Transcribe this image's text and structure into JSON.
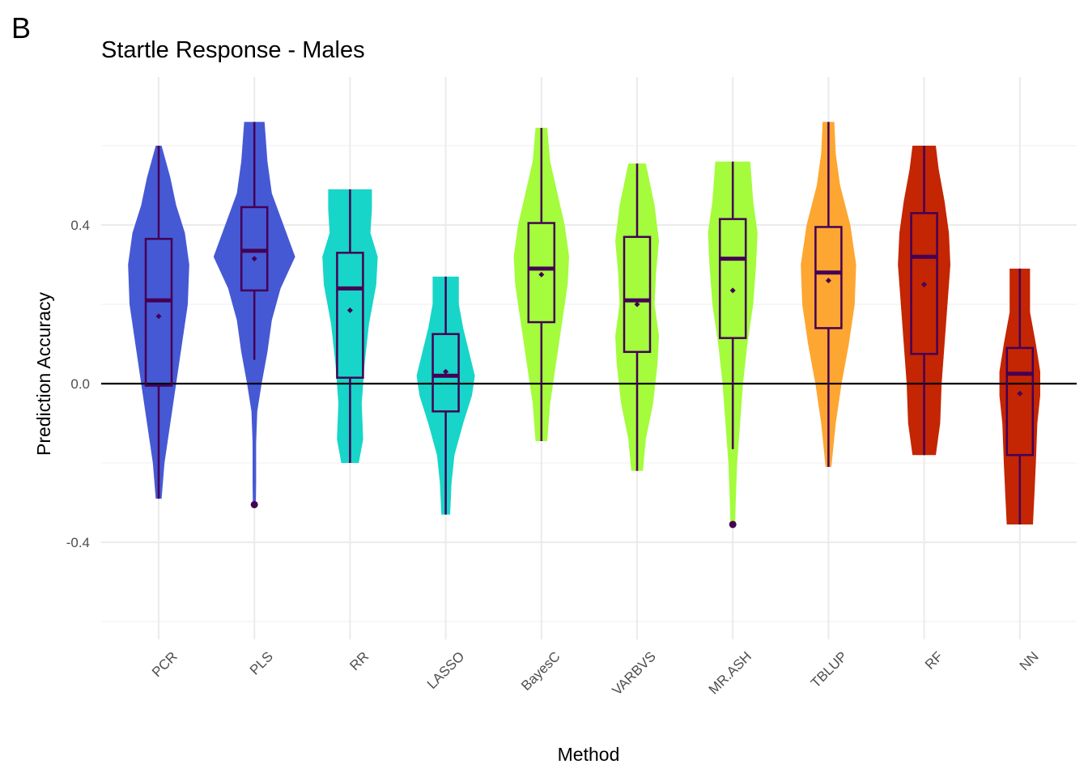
{
  "panel_label": "B",
  "chart_data": {
    "type": "violin",
    "title": "Startle Response - Males",
    "xlabel": "Method",
    "ylabel": "Prediction Accuracy",
    "ylim": [
      -0.6,
      0.66
    ],
    "y_ticks": [
      -0.4,
      0.0,
      0.4
    ],
    "y_tick_labels": [
      "-0.4",
      "0.0",
      "0.4"
    ],
    "reference_line": 0.0,
    "grid": true,
    "legend": "none",
    "categories": [
      "PCR",
      "PLS",
      "RR",
      "LASSO",
      "BayesC",
      "VARBVS",
      "MR.ASH",
      "TBLUP",
      "RF",
      "NN"
    ],
    "series": [
      {
        "category": "PCR",
        "color": "#4659d4",
        "min": -0.29,
        "max": 0.6,
        "q1": -0.005,
        "median": 0.21,
        "q3": 0.365,
        "whisker_low": -0.29,
        "whisker_high": 0.6,
        "mean": 0.17,
        "outliers": [],
        "density": [
          [
            -0.29,
            0.01
          ],
          [
            -0.2,
            0.02
          ],
          [
            -0.1,
            0.04
          ],
          [
            0.0,
            0.06
          ],
          [
            0.1,
            0.08
          ],
          [
            0.2,
            0.1
          ],
          [
            0.3,
            0.105
          ],
          [
            0.38,
            0.09
          ],
          [
            0.45,
            0.06
          ],
          [
            0.52,
            0.04
          ],
          [
            0.6,
            0.01
          ]
        ]
      },
      {
        "category": "PLS",
        "color": "#4659d4",
        "min": -0.31,
        "max": 0.66,
        "q1": 0.235,
        "median": 0.335,
        "q3": 0.445,
        "whisker_low": 0.06,
        "whisker_high": 0.66,
        "mean": 0.315,
        "outliers": [
          -0.305
        ],
        "density": [
          [
            -0.31,
            0.005
          ],
          [
            -0.25,
            0.006
          ],
          [
            -0.15,
            0.006
          ],
          [
            -0.07,
            0.01
          ],
          [
            0.0,
            0.025
          ],
          [
            0.08,
            0.045
          ],
          [
            0.16,
            0.06
          ],
          [
            0.24,
            0.09
          ],
          [
            0.32,
            0.14
          ],
          [
            0.4,
            0.1
          ],
          [
            0.48,
            0.06
          ],
          [
            0.56,
            0.045
          ],
          [
            0.66,
            0.035
          ]
        ]
      },
      {
        "category": "RR",
        "color": "#18d5c9",
        "min": -0.2,
        "max": 0.49,
        "q1": 0.015,
        "median": 0.24,
        "q3": 0.33,
        "whisker_low": -0.2,
        "whisker_high": 0.49,
        "mean": 0.185,
        "outliers": [],
        "density": [
          [
            -0.2,
            0.03
          ],
          [
            -0.14,
            0.045
          ],
          [
            -0.05,
            0.04
          ],
          [
            0.05,
            0.05
          ],
          [
            0.15,
            0.065
          ],
          [
            0.25,
            0.09
          ],
          [
            0.32,
            0.095
          ],
          [
            0.38,
            0.07
          ],
          [
            0.44,
            0.075
          ],
          [
            0.49,
            0.075
          ]
        ]
      },
      {
        "category": "LASSO",
        "color": "#18d5c9",
        "min": -0.33,
        "max": 0.27,
        "q1": -0.07,
        "median": 0.02,
        "q3": 0.125,
        "whisker_low": -0.33,
        "whisker_high": 0.27,
        "mean": 0.03,
        "outliers": [],
        "density": [
          [
            -0.33,
            0.015
          ],
          [
            -0.25,
            0.02
          ],
          [
            -0.18,
            0.03
          ],
          [
            -0.1,
            0.06
          ],
          [
            -0.03,
            0.09
          ],
          [
            0.02,
            0.1
          ],
          [
            0.08,
            0.08
          ],
          [
            0.14,
            0.06
          ],
          [
            0.2,
            0.045
          ],
          [
            0.27,
            0.045
          ]
        ]
      },
      {
        "category": "BayesC",
        "color": "#a4fc3c",
        "min": -0.145,
        "max": 0.645,
        "q1": 0.155,
        "median": 0.29,
        "q3": 0.405,
        "whisker_low": -0.145,
        "whisker_high": 0.645,
        "mean": 0.275,
        "outliers": [],
        "density": [
          [
            -0.145,
            0.02
          ],
          [
            -0.05,
            0.03
          ],
          [
            0.05,
            0.05
          ],
          [
            0.15,
            0.07
          ],
          [
            0.25,
            0.09
          ],
          [
            0.32,
            0.095
          ],
          [
            0.4,
            0.08
          ],
          [
            0.48,
            0.055
          ],
          [
            0.56,
            0.03
          ],
          [
            0.645,
            0.02
          ]
        ]
      },
      {
        "category": "VARBVS",
        "color": "#a4fc3c",
        "min": -0.22,
        "max": 0.555,
        "q1": 0.08,
        "median": 0.21,
        "q3": 0.37,
        "whisker_low": -0.22,
        "whisker_high": 0.555,
        "mean": 0.2,
        "outliers": [],
        "density": [
          [
            -0.22,
            0.02
          ],
          [
            -0.14,
            0.03
          ],
          [
            -0.05,
            0.055
          ],
          [
            0.05,
            0.07
          ],
          [
            0.12,
            0.075
          ],
          [
            0.2,
            0.06
          ],
          [
            0.28,
            0.065
          ],
          [
            0.36,
            0.075
          ],
          [
            0.45,
            0.06
          ],
          [
            0.555,
            0.03
          ]
        ]
      },
      {
        "category": "MR.ASH",
        "color": "#a4fc3c",
        "min": -0.355,
        "max": 0.56,
        "q1": 0.115,
        "median": 0.315,
        "q3": 0.415,
        "whisker_low": -0.165,
        "whisker_high": 0.56,
        "mean": 0.235,
        "outliers": [
          -0.355
        ],
        "density": [
          [
            -0.355,
            0.008
          ],
          [
            -0.3,
            0.01
          ],
          [
            -0.2,
            0.015
          ],
          [
            -0.1,
            0.025
          ],
          [
            0.0,
            0.035
          ],
          [
            0.1,
            0.05
          ],
          [
            0.2,
            0.07
          ],
          [
            0.3,
            0.08
          ],
          [
            0.38,
            0.085
          ],
          [
            0.46,
            0.07
          ],
          [
            0.56,
            0.06
          ]
        ]
      },
      {
        "category": "TBLUP",
        "color": "#fea632",
        "min": -0.21,
        "max": 0.66,
        "q1": 0.14,
        "median": 0.28,
        "q3": 0.395,
        "whisker_low": -0.21,
        "whisker_high": 0.66,
        "mean": 0.26,
        "outliers": [],
        "density": [
          [
            -0.21,
            0.01
          ],
          [
            -0.1,
            0.025
          ],
          [
            0.0,
            0.045
          ],
          [
            0.1,
            0.07
          ],
          [
            0.2,
            0.09
          ],
          [
            0.3,
            0.095
          ],
          [
            0.4,
            0.075
          ],
          [
            0.5,
            0.04
          ],
          [
            0.58,
            0.025
          ],
          [
            0.66,
            0.02
          ]
        ]
      },
      {
        "category": "RF",
        "color": "#c42503",
        "min": -0.18,
        "max": 0.6,
        "q1": 0.075,
        "median": 0.32,
        "q3": 0.43,
        "whisker_low": -0.18,
        "whisker_high": 0.6,
        "mean": 0.25,
        "outliers": [],
        "density": [
          [
            -0.18,
            0.04
          ],
          [
            -0.1,
            0.055
          ],
          [
            0.0,
            0.06
          ],
          [
            0.1,
            0.07
          ],
          [
            0.2,
            0.08
          ],
          [
            0.3,
            0.09
          ],
          [
            0.38,
            0.085
          ],
          [
            0.46,
            0.07
          ],
          [
            0.54,
            0.05
          ],
          [
            0.6,
            0.04
          ]
        ]
      },
      {
        "category": "NN",
        "color": "#c42503",
        "min": -0.355,
        "max": 0.29,
        "q1": -0.18,
        "median": 0.025,
        "q3": 0.09,
        "whisker_low": -0.355,
        "whisker_high": 0.29,
        "mean": -0.025,
        "outliers": [],
        "density": [
          [
            -0.355,
            0.045
          ],
          [
            -0.28,
            0.05
          ],
          [
            -0.2,
            0.055
          ],
          [
            -0.1,
            0.06
          ],
          [
            -0.03,
            0.07
          ],
          [
            0.03,
            0.07
          ],
          [
            0.1,
            0.055
          ],
          [
            0.18,
            0.035
          ],
          [
            0.24,
            0.035
          ],
          [
            0.29,
            0.035
          ]
        ]
      }
    ]
  }
}
